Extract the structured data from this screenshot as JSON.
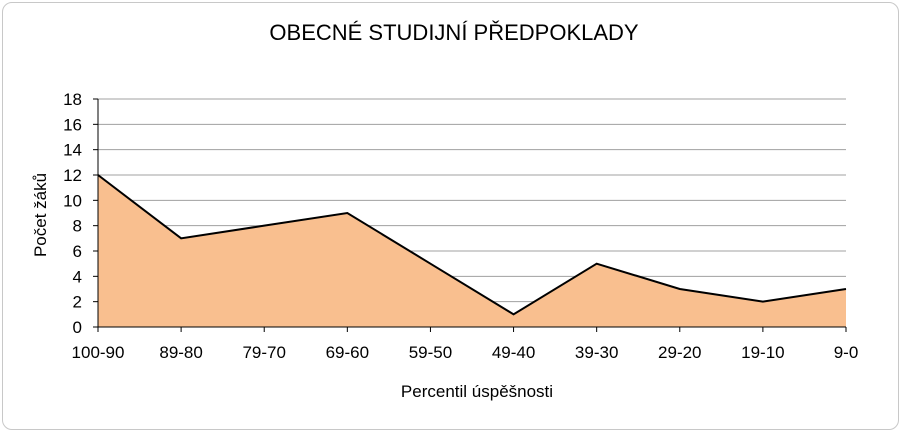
{
  "chart_data": {
    "type": "area",
    "title": "OBECNÉ STUDIJNÍ PŘEDPOKLADY",
    "xlabel": "Percentil úspěšnosti",
    "ylabel": "Počet žáků",
    "categories": [
      "100-90",
      "89-80",
      "79-70",
      "69-60",
      "59-50",
      "49-40",
      "39-30",
      "29-20",
      "19-10",
      "9-0"
    ],
    "values": [
      12,
      7,
      8,
      9,
      5,
      1,
      5,
      3,
      2,
      3
    ],
    "ylim": [
      0,
      18
    ],
    "yticks": [
      0,
      2,
      4,
      6,
      8,
      10,
      12,
      14,
      16,
      18
    ],
    "grid": true,
    "legend": "none",
    "colors": {
      "fill": "#f9bf8f",
      "line": "#000000",
      "grid": "#a0a0a0"
    }
  }
}
